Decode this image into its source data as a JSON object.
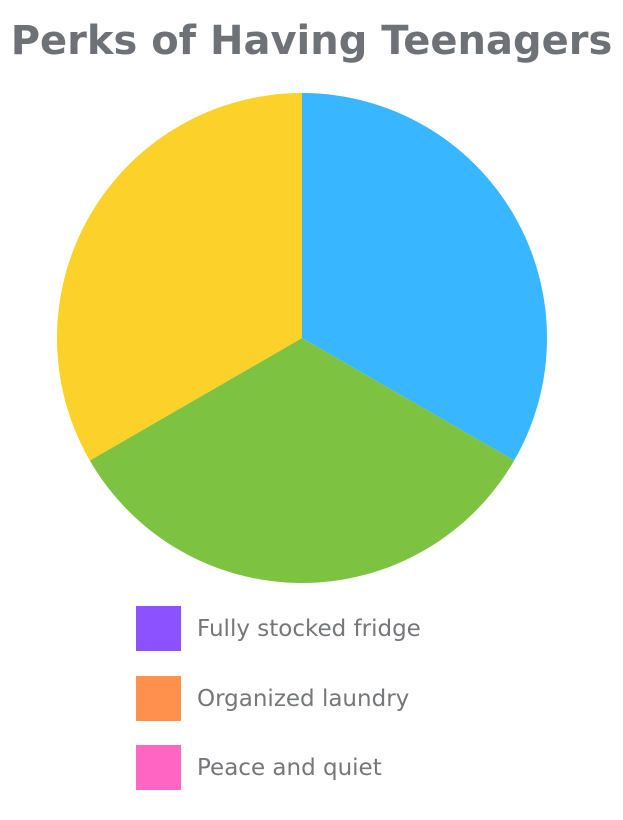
{
  "chart_data": {
    "type": "pie",
    "title": "Perks of Having Teenagers",
    "slices": [
      {
        "value": 33.33,
        "color": "#38b6ff"
      },
      {
        "value": 33.33,
        "color": "#7ec242"
      },
      {
        "value": 33.33,
        "color": "#fcd12a"
      }
    ],
    "start_angle_deg": 0,
    "direction": "clockwise",
    "legend": {
      "placement": "bottom",
      "entries": [
        {
          "label": "Fully stocked fridge",
          "color": "#8c52ff"
        },
        {
          "label": "Organized laundry",
          "color": "#ff914d"
        },
        {
          "label": "Peace and quiet",
          "color": "#ff66c4"
        }
      ]
    }
  }
}
